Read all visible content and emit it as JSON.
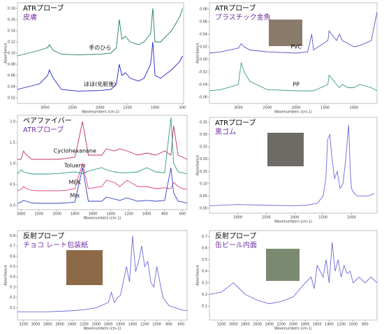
{
  "chart_data": [
    {
      "type": "line",
      "title": "ATRプローブ",
      "subtitle": "皮膚",
      "ylabel": "Absorbance",
      "xlabel": "Wavenumbers (cm-1)",
      "xlim": [
        3500,
        480
      ],
      "xticks": [
        3000,
        2500,
        2000,
        1500,
        1000,
        500
      ],
      "ylim": [
        0.01,
        0.19
      ],
      "yticks": [
        0.02,
        0.04,
        0.06,
        0.08,
        {
          "value": 0.1,
          "label": "0.10"
        },
        0.12,
        0.14,
        0.16,
        0.18
      ],
      "x": [
        3500,
        3300,
        3100,
        2950,
        2920,
        2850,
        2700,
        2400,
        2000,
        1800,
        1700,
        1650,
        1600,
        1540,
        1450,
        1300,
        1200,
        1080,
        1040,
        1000,
        900,
        700,
        550,
        500
      ],
      "series": [
        {
          "name": "手のひら",
          "color": "#1f7a6a",
          "values": [
            0.095,
            0.1,
            0.105,
            0.11,
            0.115,
            0.105,
            0.098,
            0.097,
            0.098,
            0.1,
            0.11,
            0.16,
            0.125,
            0.13,
            0.12,
            0.115,
            0.12,
            0.135,
            0.18,
            0.12,
            0.12,
            0.14,
            0.165,
            0.18
          ]
        },
        {
          "name": "ほほ(化粧後)",
          "color": "#2222cc",
          "values": [
            0.035,
            0.04,
            0.045,
            0.06,
            0.07,
            0.055,
            0.035,
            0.032,
            0.033,
            0.035,
            0.045,
            0.08,
            0.06,
            0.065,
            0.055,
            0.05,
            0.055,
            0.08,
            0.12,
            0.06,
            0.055,
            0.07,
            0.085,
            0.095
          ]
        }
      ]
    },
    {
      "type": "line",
      "title": "ATRプローブ",
      "subtitle": "プラスチック金魚",
      "ylabel": "Absorbance",
      "xlabel": "Wavenumbers (cm-1)",
      "xlim": [
        3500,
        600
      ],
      "xticks": [
        3000,
        2500,
        2000,
        1500,
        1000
      ],
      "ylim": [
        -0.07,
        0.09
      ],
      "yticks": [
        0.08,
        0.06,
        0.04,
        0.02,
        {
          "value": 0,
          "label": "0.00"
        },
        -0.02,
        -0.04,
        -0.06
      ],
      "x": [
        3500,
        3300,
        3000,
        2950,
        2900,
        2800,
        2500,
        2000,
        1800,
        1730,
        1700,
        1450,
        1430,
        1300,
        1250,
        1200,
        1100,
        1000,
        900,
        700,
        600
      ],
      "series": [
        {
          "name": "PVC",
          "color": "#5555cc",
          "values": [
            0.01,
            0.012,
            0.018,
            0.025,
            0.02,
            0.015,
            0.012,
            0.01,
            0.012,
            0.04,
            0.015,
            0.03,
            0.045,
            0.03,
            0.04,
            0.03,
            0.025,
            0.02,
            0.022,
            0.03,
            0.075
          ]
        },
        {
          "name": "PP",
          "color": "#3a9a80",
          "values": [
            -0.05,
            -0.048,
            -0.04,
            -0.005,
            -0.02,
            -0.035,
            -0.048,
            -0.05,
            -0.05,
            -0.05,
            -0.05,
            -0.04,
            -0.025,
            -0.04,
            -0.045,
            -0.04,
            -0.045,
            -0.045,
            -0.04,
            -0.045,
            -0.05
          ]
        }
      ]
    },
    {
      "type": "line",
      "title": "ペアファイバー",
      "subtitle": "ATRプローブ",
      "xlabel": "Wavenumbers (cm-1)",
      "xlim": [
        3100,
        550
      ],
      "xticks": [
        3000,
        2500,
        2000,
        1800,
        1600,
        1400,
        1200,
        1000,
        800,
        600
      ],
      "ylim": [
        -0.1,
        2.15
      ],
      "yticks": [
        {
          "value": 0,
          "label": "0.0"
        },
        0.5,
        {
          "value": 1,
          "label": "1.0"
        },
        1.5,
        {
          "value": 2,
          "label": "2.0"
        }
      ],
      "x": [
        3100,
        3000,
        2930,
        2850,
        2700,
        2500,
        2200,
        2000,
        1900,
        1800,
        1715,
        1650,
        1500,
        1450,
        1360,
        1300,
        1220,
        1100,
        1000,
        900,
        800,
        730,
        700,
        650,
        600,
        550
      ],
      "series": [
        {
          "name": "Cyclohexanone",
          "color": "#c0305a",
          "values": [
            1.1,
            1.1,
            1.3,
            1.2,
            1.1,
            1.1,
            1.1,
            1.1,
            1.12,
            1.15,
            2.0,
            1.2,
            1.2,
            1.35,
            1.3,
            1.35,
            1.3,
            1.2,
            1.25,
            1.2,
            1.3,
            1.2,
            1.9,
            1.2,
            1.15,
            1.1
          ]
        },
        {
          "name": "Toluene",
          "color": "#2a9a88",
          "values": [
            0.75,
            0.85,
            0.8,
            0.78,
            0.75,
            0.75,
            0.75,
            0.76,
            0.78,
            0.8,
            0.76,
            0.82,
            0.9,
            0.85,
            0.8,
            0.78,
            0.78,
            0.8,
            0.9,
            0.8,
            0.78,
            2.1,
            1.0,
            0.8,
            0.78,
            0.75
          ]
        },
        {
          "name": "MEK",
          "color": "#e0407a",
          "values": [
            0.35,
            0.38,
            0.45,
            0.4,
            0.36,
            0.35,
            0.35,
            0.35,
            0.36,
            0.4,
            1.0,
            0.4,
            0.45,
            0.6,
            0.55,
            0.45,
            0.6,
            0.45,
            0.45,
            0.4,
            0.42,
            0.4,
            0.55,
            0.45,
            0.4,
            0.38
          ]
        },
        {
          "name": "Mix",
          "color": "#3040c0",
          "values": [
            0.05,
            0.08,
            0.12,
            0.1,
            0.06,
            0.05,
            0.05,
            0.05,
            0.06,
            0.08,
            0.9,
            0.1,
            0.1,
            0.2,
            0.15,
            0.12,
            0.18,
            0.1,
            0.12,
            0.1,
            0.12,
            0.9,
            0.3,
            0.1,
            0.08,
            0.05
          ]
        }
      ]
    },
    {
      "type": "line",
      "title": "ATRプローブ",
      "subtitle": "黒ゴム",
      "ylabel": "Absorbance",
      "xlabel": "Wavenumbers (cm-1)",
      "xlim": [
        3500,
        550
      ],
      "xticks": [
        3000,
        2500,
        2000,
        1500,
        1000
      ],
      "ylim": [
        -0.02,
        0.37
      ],
      "yticks": [
        {
          "value": 0,
          "label": "0.00"
        },
        0.05,
        {
          "value": 0.1,
          "label": "0.10"
        },
        0.15,
        {
          "value": 0.2,
          "label": "0.20"
        },
        0.25,
        {
          "value": 0.3,
          "label": "0.30"
        },
        0.35
      ],
      "x": [
        3500,
        3000,
        2500,
        2000,
        1800,
        1600,
        1500,
        1450,
        1420,
        1380,
        1350,
        1300,
        1250,
        1200,
        1150,
        1100,
        1050,
        1020,
        1000,
        950,
        900,
        800,
        700,
        600
      ],
      "series": [
        {
          "color": "#6a6ad8",
          "values": [
            0.01,
            0.015,
            0.012,
            0.01,
            0.012,
            0.02,
            0.05,
            0.12,
            0.28,
            0.3,
            0.22,
            0.12,
            0.15,
            0.08,
            0.1,
            0.2,
            0.34,
            0.15,
            0.08,
            0.06,
            0.05,
            0.05,
            0.05,
            0.06
          ]
        }
      ]
    },
    {
      "type": "line",
      "title": "反射プローブ",
      "subtitle": "チョコ レート包装紙",
      "ylabel": "Absorbance",
      "xlabel": "Wavenumbers (cm-1)",
      "xlim": [
        3300,
        500
      ],
      "xticks": [
        3200,
        3000,
        2800,
        2600,
        2400,
        2200,
        2000,
        1800,
        1600,
        1400,
        1200,
        1000,
        800,
        600
      ],
      "ylim": [
        -0.02,
        0.85
      ],
      "yticks": [
        0.1,
        0.2,
        0.3,
        0.4,
        0.5,
        0.6,
        0.7,
        0.8
      ],
      "x": [
        3300,
        3000,
        2800,
        2600,
        2400,
        2200,
        2000,
        1800,
        1750,
        1700,
        1650,
        1600,
        1500,
        1450,
        1400,
        1350,
        1300,
        1250,
        1200,
        1150,
        1100,
        1050,
        1000,
        950,
        900,
        800,
        700,
        600,
        500
      ],
      "series": [
        {
          "color": "#6a6ad8",
          "values": [
            0.06,
            0.06,
            0.06,
            0.065,
            0.07,
            0.08,
            0.1,
            0.15,
            0.25,
            0.15,
            0.2,
            0.22,
            0.5,
            0.35,
            0.8,
            0.45,
            0.55,
            0.7,
            0.5,
            0.55,
            0.35,
            0.3,
            0.5,
            0.35,
            0.2,
            0.12,
            0.1,
            0.08,
            0.07
          ]
        }
      ]
    },
    {
      "type": "line",
      "title": "反射プローブ",
      "subtitle": "缶ビール内面",
      "ylabel": "Absorbance",
      "xlabel": "Wavenumbers (cm-1)",
      "xlim": [
        3400,
        600
      ],
      "xticks": [
        3200,
        3000,
        2800,
        2600,
        2400,
        2200,
        2000,
        1800,
        1600,
        1400,
        1200,
        1000,
        800
      ],
      "ylim": [
        -0.02,
        0.75
      ],
      "yticks": [
        0.1,
        0.2,
        0.3,
        0.4,
        0.5,
        0.6,
        0.7
      ],
      "x": [
        3400,
        3200,
        3000,
        2900,
        2800,
        2600,
        2400,
        2200,
        2000,
        1800,
        1700,
        1650,
        1600,
        1500,
        1450,
        1400,
        1350,
        1300,
        1250,
        1200,
        1150,
        1100,
        1050,
        1000,
        900,
        800,
        700,
        600
      ],
      "series": [
        {
          "color": "#6a6ad8",
          "values": [
            0.2,
            0.22,
            0.3,
            0.25,
            0.2,
            0.15,
            0.12,
            0.14,
            0.18,
            0.3,
            0.35,
            0.25,
            0.45,
            0.35,
            0.5,
            0.3,
            0.65,
            0.4,
            0.5,
            0.35,
            0.45,
            0.38,
            0.4,
            0.3,
            0.35,
            0.3,
            0.35,
            0.3
          ]
        }
      ]
    }
  ]
}
